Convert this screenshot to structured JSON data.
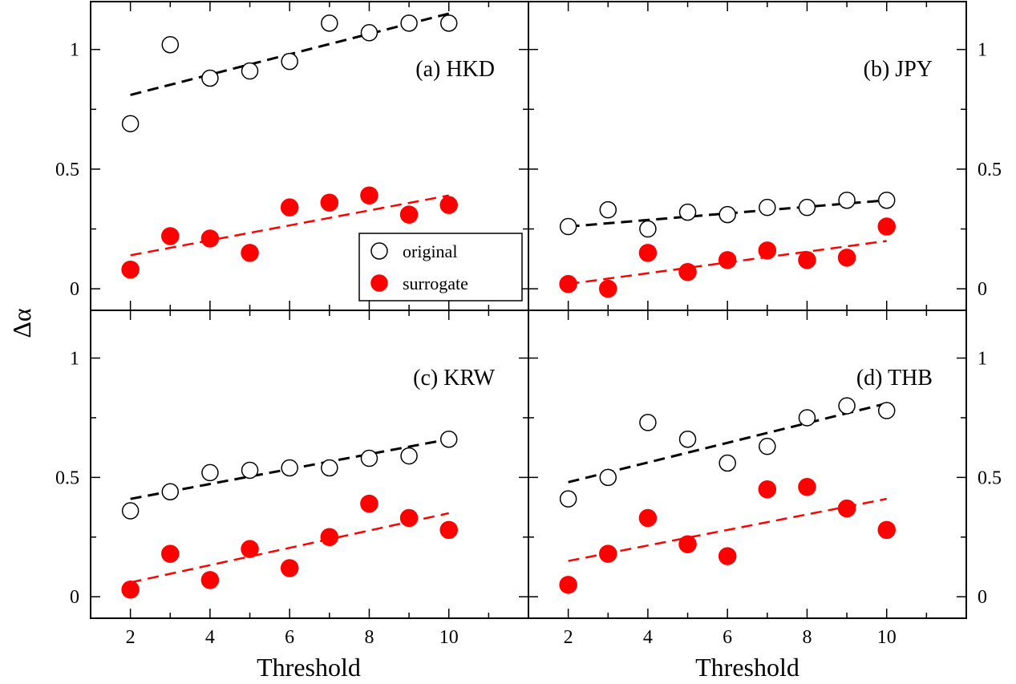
{
  "chart_data": {
    "type": "scatter",
    "layout": "2x2 panels sharing axes",
    "xlabel": "Threshold",
    "ylabel": "Δα",
    "xlim": [
      1,
      12
    ],
    "ylim": [
      -0.09,
      1.2
    ],
    "xticks": [
      2,
      4,
      6,
      8,
      10
    ],
    "yticks": [
      0,
      0.5,
      1
    ],
    "ytick_labels": [
      "0",
      "0.5",
      "1"
    ],
    "legend": {
      "placement": "panel (a), lower-right",
      "entries": [
        {
          "label": "original",
          "marker": "open circle",
          "color": "#000000"
        },
        {
          "label": "surrogate",
          "marker": "filled circle",
          "color": "#ff0000"
        }
      ]
    },
    "panels": [
      {
        "label": "(a) HKD",
        "x": [
          2,
          3,
          4,
          5,
          6,
          7,
          8,
          9,
          10
        ],
        "series": [
          {
            "name": "original",
            "values": [
              0.69,
              1.02,
              0.88,
              0.91,
              0.95,
              1.11,
              1.07,
              1.11,
              1.11
            ],
            "fit": {
              "x": [
                2,
                10
              ],
              "y": [
                0.81,
                1.15
              ]
            }
          },
          {
            "name": "surrogate",
            "values": [
              0.08,
              0.22,
              0.21,
              0.15,
              0.34,
              0.36,
              0.39,
              0.31,
              0.35
            ],
            "fit": {
              "x": [
                2,
                10
              ],
              "y": [
                0.14,
                0.39
              ]
            }
          }
        ]
      },
      {
        "label": "(b) JPY",
        "x": [
          2,
          3,
          4,
          5,
          6,
          7,
          8,
          9,
          10
        ],
        "series": [
          {
            "name": "original",
            "values": [
              0.26,
              0.33,
              0.25,
              0.32,
              0.31,
              0.34,
              0.34,
              0.37,
              0.37
            ],
            "fit": {
              "x": [
                2,
                10
              ],
              "y": [
                0.26,
                0.37
              ]
            }
          },
          {
            "name": "surrogate",
            "values": [
              0.02,
              0.0,
              0.15,
              0.07,
              0.12,
              0.16,
              0.12,
              0.13,
              0.26
            ],
            "fit": {
              "x": [
                2,
                10
              ],
              "y": [
                0.02,
                0.2
              ]
            }
          }
        ]
      },
      {
        "label": "(c) KRW",
        "x": [
          2,
          3,
          4,
          5,
          6,
          7,
          8,
          9,
          10
        ],
        "series": [
          {
            "name": "original",
            "values": [
              0.36,
              0.44,
              0.52,
              0.53,
              0.54,
              0.54,
              0.58,
              0.59,
              0.66
            ],
            "fit": {
              "x": [
                2,
                10
              ],
              "y": [
                0.41,
                0.66
              ]
            }
          },
          {
            "name": "surrogate",
            "values": [
              0.03,
              0.18,
              0.07,
              0.2,
              0.12,
              0.25,
              0.39,
              0.33,
              0.28
            ],
            "fit": {
              "x": [
                2,
                10
              ],
              "y": [
                0.06,
                0.35
              ]
            }
          }
        ]
      },
      {
        "label": "(d) THB",
        "x": [
          2,
          3,
          4,
          5,
          6,
          7,
          8,
          9,
          10
        ],
        "series": [
          {
            "name": "original",
            "values": [
              0.41,
              0.5,
              0.73,
              0.66,
              0.56,
              0.63,
              0.75,
              0.8,
              0.78
            ],
            "fit": {
              "x": [
                2,
                10
              ],
              "y": [
                0.48,
                0.81
              ]
            }
          },
          {
            "name": "surrogate",
            "values": [
              0.05,
              0.18,
              0.33,
              0.22,
              0.17,
              0.45,
              0.46,
              0.37,
              0.28
            ],
            "fit": {
              "x": [
                2,
                10
              ],
              "y": [
                0.15,
                0.41
              ]
            }
          }
        ]
      }
    ]
  }
}
